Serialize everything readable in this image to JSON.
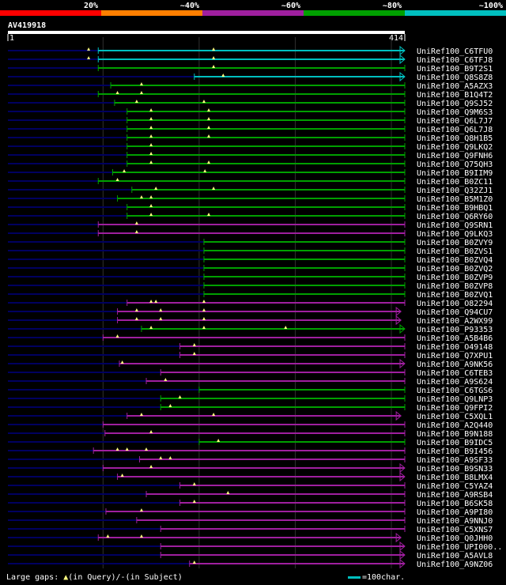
{
  "query_id": "AV419918",
  "footer": {
    "large_gaps_label": "Large gaps: ",
    "in_query": "(in Query)/",
    "in_subject": "(in Subject)",
    "scale_note": "=100char."
  },
  "colors": {
    "lt20": "#ff0000",
    "20to40": "#ff7f00",
    "40to60": "#9f1f9f",
    "60to80": "#00a000",
    "80to100": "#00bfbf",
    "link": "#000060",
    "grid": "#303030"
  },
  "chart_data": {
    "type": "alignment",
    "query_length": 414,
    "axis_start_label": "1",
    "axis_end_label": "414",
    "identity_scale": [
      "20%",
      "~40%",
      "~60%",
      "~80%",
      "~100%"
    ],
    "hits": [
      {
        "name": "UniRef100_C6TFU0",
        "cls": "80to100",
        "start": 95,
        "end": 414,
        "marks": [
          85,
          215
        ],
        "arrow": true
      },
      {
        "name": "UniRef100_C6TFJ8",
        "cls": "80to100",
        "start": 95,
        "end": 414,
        "marks": [
          85,
          215
        ],
        "arrow": true
      },
      {
        "name": "UniRef100_B9T2S1",
        "cls": "60to80",
        "start": 95,
        "end": 414,
        "marks": [
          215
        ],
        "arrow": false
      },
      {
        "name": "UniRef100_Q8S8Z8",
        "cls": "80to100",
        "start": 195,
        "end": 414,
        "marks": [
          225
        ],
        "arrow": true
      },
      {
        "name": "UniRef100_A5AZX3",
        "cls": "60to80",
        "start": 108,
        "end": 414,
        "marks": [
          140
        ],
        "arrow": false
      },
      {
        "name": "UniRef100_B1Q4T2",
        "cls": "60to80",
        "start": 95,
        "end": 414,
        "marks": [
          115,
          140
        ],
        "arrow": false
      },
      {
        "name": "UniRef100_Q9SJ52",
        "cls": "60to80",
        "start": 112,
        "end": 414,
        "marks": [
          135,
          205
        ],
        "arrow": false
      },
      {
        "name": "UniRef100_Q9M6S3",
        "cls": "60to80",
        "start": 125,
        "end": 414,
        "marks": [
          150,
          210
        ],
        "arrow": false
      },
      {
        "name": "UniRef100_Q6L7J7",
        "cls": "60to80",
        "start": 125,
        "end": 414,
        "marks": [
          150,
          210
        ],
        "arrow": false
      },
      {
        "name": "UniRef100_Q6L7J8",
        "cls": "60to80",
        "start": 125,
        "end": 414,
        "marks": [
          150,
          210
        ],
        "arrow": false
      },
      {
        "name": "UniRef100_Q8H1B5",
        "cls": "60to80",
        "start": 125,
        "end": 414,
        "marks": [
          150,
          210
        ],
        "arrow": false
      },
      {
        "name": "UniRef100_Q9LKQ2",
        "cls": "60to80",
        "start": 125,
        "end": 414,
        "marks": [
          150
        ],
        "arrow": false
      },
      {
        "name": "UniRef100_Q9FNH6",
        "cls": "60to80",
        "start": 125,
        "end": 414,
        "marks": [
          150
        ],
        "arrow": false
      },
      {
        "name": "UniRef100_Q75QH3",
        "cls": "60to80",
        "start": 125,
        "end": 414,
        "marks": [
          150,
          210
        ],
        "arrow": false
      },
      {
        "name": "UniRef100_B9IIM9",
        "cls": "60to80",
        "start": 110,
        "end": 414,
        "marks": [
          122,
          206
        ],
        "arrow": false
      },
      {
        "name": "UniRef100_B0ZC11",
        "cls": "60to80",
        "start": 95,
        "end": 414,
        "marks": [
          115
        ],
        "arrow": false
      },
      {
        "name": "UniRef100_Q32ZJ1",
        "cls": "60to80",
        "start": 130,
        "end": 414,
        "marks": [
          155,
          215
        ],
        "arrow": false
      },
      {
        "name": "UniRef100_B5M1Z0",
        "cls": "60to80",
        "start": 115,
        "end": 414,
        "marks": [
          140,
          150
        ],
        "arrow": false
      },
      {
        "name": "UniRef100_B9HBQ1",
        "cls": "60to80",
        "start": 125,
        "end": 414,
        "marks": [
          150
        ],
        "arrow": false
      },
      {
        "name": "UniRef100_Q6RY60",
        "cls": "60to80",
        "start": 125,
        "end": 414,
        "marks": [
          150,
          210
        ],
        "arrow": false
      },
      {
        "name": "UniRef100_Q9SRN1",
        "cls": "40to60",
        "start": 95,
        "end": 414,
        "marks": [
          135
        ],
        "arrow": false
      },
      {
        "name": "UniRef100_Q9LKQ3",
        "cls": "40to60",
        "start": 95,
        "end": 414,
        "marks": [
          135
        ],
        "arrow": false
      },
      {
        "name": "UniRef100_B0ZVY9",
        "cls": "60to80",
        "start": 205,
        "end": 414,
        "marks": [],
        "arrow": false
      },
      {
        "name": "UniRef100_B0ZVS1",
        "cls": "60to80",
        "start": 205,
        "end": 414,
        "marks": [],
        "arrow": false
      },
      {
        "name": "UniRef100_B0ZVQ4",
        "cls": "60to80",
        "start": 205,
        "end": 414,
        "marks": [],
        "arrow": false
      },
      {
        "name": "UniRef100_B0ZVQ2",
        "cls": "60to80",
        "start": 205,
        "end": 414,
        "marks": [],
        "arrow": false
      },
      {
        "name": "UniRef100_B0ZVP9",
        "cls": "60to80",
        "start": 205,
        "end": 414,
        "marks": [],
        "arrow": false
      },
      {
        "name": "UniRef100_B0ZVP8",
        "cls": "60to80",
        "start": 205,
        "end": 414,
        "marks": [],
        "arrow": false
      },
      {
        "name": "UniRef100_B0ZVQ1",
        "cls": "60to80",
        "start": 205,
        "end": 414,
        "marks": [],
        "arrow": false
      },
      {
        "name": "UniRef100_O82294",
        "cls": "40to60",
        "start": 125,
        "end": 414,
        "marks": [
          150,
          155,
          205
        ],
        "arrow": false
      },
      {
        "name": "UniRef100_Q94CU7",
        "cls": "40to60",
        "start": 115,
        "end": 410,
        "marks": [
          135,
          160,
          205
        ],
        "arrow": true
      },
      {
        "name": "UniRef100_A2WX99",
        "cls": "40to60",
        "start": 115,
        "end": 410,
        "marks": [
          135,
          160,
          205
        ],
        "arrow": true
      },
      {
        "name": "UniRef100_P93353",
        "cls": "60to80",
        "start": 140,
        "end": 414,
        "marks": [
          150,
          205,
          290
        ],
        "arrow": true
      },
      {
        "name": "UniRef100_A5B4B6",
        "cls": "40to60",
        "start": 100,
        "end": 414,
        "marks": [
          115
        ],
        "arrow": false
      },
      {
        "name": "UniRef100_O49148",
        "cls": "40to60",
        "start": 180,
        "end": 414,
        "marks": [
          195
        ],
        "arrow": false
      },
      {
        "name": "UniRef100_Q7XPU1",
        "cls": "40to60",
        "start": 180,
        "end": 414,
        "marks": [
          195
        ],
        "arrow": false
      },
      {
        "name": "UniRef100_A9NK56",
        "cls": "40to60",
        "start": 117,
        "end": 414,
        "marks": [
          120
        ],
        "arrow": true
      },
      {
        "name": "UniRef100_C6TEB3",
        "cls": "40to60",
        "start": 160,
        "end": 414,
        "marks": [],
        "arrow": false
      },
      {
        "name": "UniRef100_A9S624",
        "cls": "40to60",
        "start": 145,
        "end": 414,
        "marks": [
          165
        ],
        "arrow": false
      },
      {
        "name": "UniRef100_C6TGS6",
        "cls": "60to80",
        "start": 200,
        "end": 414,
        "marks": [],
        "arrow": false
      },
      {
        "name": "UniRef100_Q9LNP3",
        "cls": "60to80",
        "start": 160,
        "end": 414,
        "marks": [
          180
        ],
        "arrow": false
      },
      {
        "name": "UniRef100_Q9FPI2",
        "cls": "60to80",
        "start": 160,
        "end": 414,
        "marks": [
          170
        ],
        "arrow": false
      },
      {
        "name": "UniRef100_C5XQL1",
        "cls": "40to60",
        "start": 125,
        "end": 410,
        "marks": [
          140,
          215
        ],
        "arrow": true
      },
      {
        "name": "UniRef100_A2Q440",
        "cls": "40to60",
        "start": 100,
        "end": 414,
        "marks": [],
        "arrow": false
      },
      {
        "name": "UniRef100_B9N188",
        "cls": "40to60",
        "start": 102,
        "end": 414,
        "marks": [
          150
        ],
        "arrow": false
      },
      {
        "name": "UniRef100_B9IDC5",
        "cls": "60to80",
        "start": 200,
        "end": 414,
        "marks": [
          220
        ],
        "arrow": false
      },
      {
        "name": "UniRef100_B9I456",
        "cls": "40to60",
        "start": 90,
        "end": 414,
        "marks": [
          115,
          125,
          145
        ],
        "arrow": false
      },
      {
        "name": "UniRef100_A9SF33",
        "cls": "40to60",
        "start": 138,
        "end": 414,
        "marks": [
          160,
          170
        ],
        "arrow": false
      },
      {
        "name": "UniRef100_B9SN33",
        "cls": "40to60",
        "start": 100,
        "end": 414,
        "marks": [
          150
        ],
        "arrow": true
      },
      {
        "name": "UniRef100_B8LMX4",
        "cls": "40to60",
        "start": 115,
        "end": 414,
        "marks": [
          120
        ],
        "arrow": true
      },
      {
        "name": "UniRef100_C5YAZ4",
        "cls": "40to60",
        "start": 180,
        "end": 414,
        "marks": [
          195
        ],
        "arrow": false
      },
      {
        "name": "UniRef100_A9RSB4",
        "cls": "40to60",
        "start": 145,
        "end": 414,
        "marks": [
          230
        ],
        "arrow": false
      },
      {
        "name": "UniRef100_B6SK58",
        "cls": "40to60",
        "start": 180,
        "end": 414,
        "marks": [
          195
        ],
        "arrow": false
      },
      {
        "name": "UniRef100_A9PI80",
        "cls": "40to60",
        "start": 103,
        "end": 414,
        "marks": [
          140
        ],
        "arrow": false
      },
      {
        "name": "UniRef100_A9NNJ0",
        "cls": "40to60",
        "start": 135,
        "end": 414,
        "marks": [],
        "arrow": false
      },
      {
        "name": "UniRef100_C5XNS7",
        "cls": "40to60",
        "start": 160,
        "end": 414,
        "marks": [],
        "arrow": false
      },
      {
        "name": "UniRef100_Q0JHH0",
        "cls": "40to60",
        "start": 95,
        "end": 410,
        "marks": [
          105,
          140
        ],
        "arrow": true
      },
      {
        "name": "UniRef100_UPI000..",
        "cls": "40to60",
        "start": 160,
        "end": 414,
        "marks": [],
        "arrow": true
      },
      {
        "name": "UniRef100_A5AVL8",
        "cls": "40to60",
        "start": 160,
        "end": 414,
        "marks": [],
        "arrow": true
      },
      {
        "name": "UniRef100_A9NZ06",
        "cls": "40to60",
        "start": 190,
        "end": 414,
        "marks": [
          195
        ],
        "arrow": true
      }
    ]
  }
}
